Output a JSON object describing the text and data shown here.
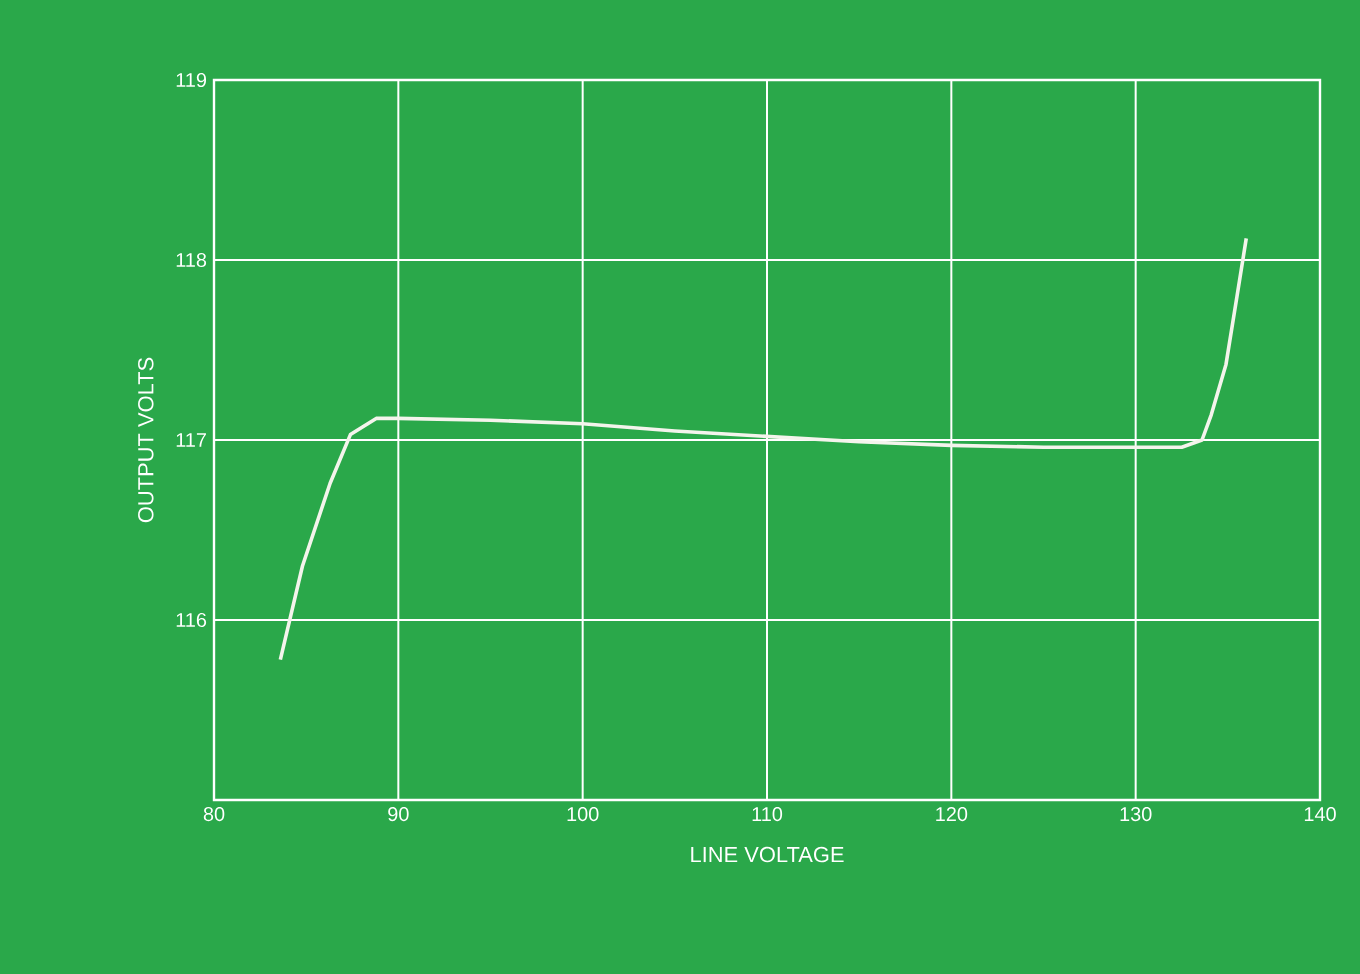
{
  "chart_data": {
    "type": "line",
    "xlabel": "LINE VOLTAGE",
    "ylabel": "OUTPUT VOLTS",
    "xlim": [
      80,
      140
    ],
    "ylim": [
      115,
      119
    ],
    "xticks": [
      80,
      90,
      100,
      110,
      120,
      130,
      140
    ],
    "yticks": [
      116,
      117,
      118,
      119
    ],
    "grid": true,
    "marker": "none",
    "line_style": "solid",
    "series": [
      {
        "color": "#f4f4ec",
        "x": [
          83.6,
          84.8,
          86.3,
          87.4,
          88.8,
          90,
          95,
          100,
          105,
          110,
          115,
          120,
          125,
          129.2,
          132.5,
          133.6,
          134.1,
          134.9,
          135.5,
          136.0
        ],
        "values": [
          115.78,
          116.3,
          116.76,
          117.03,
          117.12,
          117.12,
          117.11,
          117.09,
          117.05,
          117.02,
          116.99,
          116.97,
          116.96,
          116.96,
          116.96,
          117.0,
          117.14,
          117.42,
          117.8,
          118.12
        ]
      }
    ]
  }
}
